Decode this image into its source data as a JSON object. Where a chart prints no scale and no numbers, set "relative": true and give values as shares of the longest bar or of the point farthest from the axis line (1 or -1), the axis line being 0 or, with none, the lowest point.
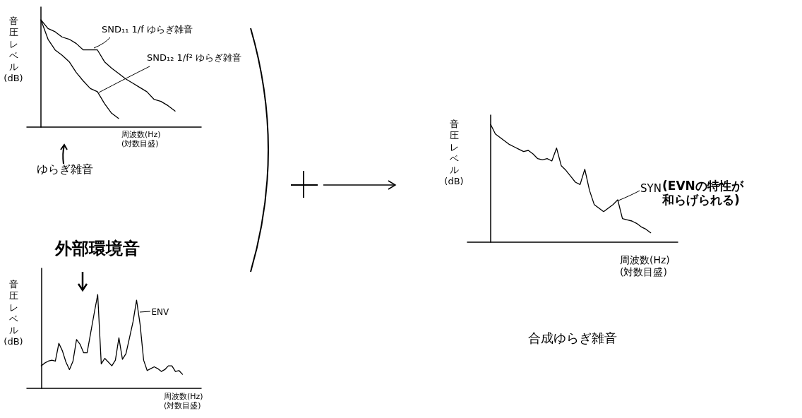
{
  "chart_data": [
    {
      "type": "line",
      "title": "ゆらぎ雑音",
      "xlabel": "周波数(Hz) (対数目盛)",
      "ylabel": "音圧レベル (dB)",
      "relative": true,
      "marker": "none",
      "line_style": "solid",
      "categories": [
        null,
        null,
        null,
        null,
        null,
        null,
        null,
        null,
        null,
        null,
        null,
        null,
        null,
        null,
        null,
        null,
        null,
        null,
        null,
        null
      ],
      "series": [
        {
          "name": "SND₁₁ 1/f ゆらぎ雑音",
          "color": "#000000",
          "values": [
            1,
            0.92,
            0.89,
            0.84,
            0.82,
            0.78,
            0.72,
            0.72,
            0.72,
            0.61,
            0.55,
            0.5,
            0.45,
            0.41,
            0.37,
            0.33,
            0.26,
            0.24,
            0.2,
            0.15
          ]
        },
        {
          "name": "SND₁₂ 1/f² ゆらぎ雑音",
          "color": "#000000",
          "values": [
            1,
            0.82,
            0.72,
            0.67,
            0.61,
            0.51,
            0.43,
            0.36,
            0.33,
            0.22,
            0.13,
            0.08,
            null,
            null,
            null,
            null,
            null,
            null,
            null,
            null
          ]
        }
      ]
    },
    {
      "type": "line",
      "title": "外部環境音",
      "xlabel": "周波数(Hz) (対数目盛)",
      "ylabel": "音圧レベル (dB)",
      "relative": true,
      "marker": "none",
      "line_style": "solid",
      "categories": [
        null,
        null,
        null,
        null,
        null,
        null,
        null,
        null,
        null,
        null,
        null,
        null,
        null,
        null,
        null,
        null,
        null,
        null,
        null,
        null,
        null,
        null,
        null,
        null,
        null,
        null,
        null,
        null,
        null,
        null,
        null,
        null,
        null,
        null,
        null,
        null,
        null,
        null,
        null,
        null,
        null
      ],
      "series": [
        {
          "name": "ENV",
          "color": "#000000",
          "values": [
            0.24,
            0.27,
            0.29,
            0.3,
            0.29,
            0.48,
            0.4,
            0.28,
            0.2,
            0.29,
            0.52,
            0.47,
            0.38,
            0.38,
            0.59,
            0.8,
            1,
            0.26,
            0.32,
            0.28,
            0.24,
            0.3,
            0.54,
            0.31,
            0.37,
            0.54,
            0.71,
            0.94,
            0.68,
            0.3,
            0.19,
            0.21,
            0.23,
            0.21,
            0.18,
            0.2,
            0.24,
            0.24,
            0.18,
            0.19,
            0.15
          ]
        }
      ]
    },
    {
      "type": "line",
      "title": "合成ゆらぎ雑音",
      "xlabel": "周波数(Hz) (対数目盛)",
      "ylabel": "音圧レベル (dB)",
      "relative": true,
      "marker": "none",
      "line_style": "solid",
      "annotations": [
        "(EVNの特性が和らげられる)"
      ],
      "categories": [
        null,
        null,
        null,
        null,
        null,
        null,
        null,
        null,
        null,
        null,
        null,
        null,
        null,
        null,
        null,
        null,
        null,
        null,
        null,
        null,
        null,
        null,
        null,
        null,
        null,
        null,
        null,
        null,
        null,
        null,
        null,
        null,
        null,
        null,
        null
      ],
      "series": [
        {
          "name": "SYN",
          "color": "#000000",
          "values": [
            1,
            0.92,
            0.89,
            0.86,
            0.83,
            0.81,
            0.79,
            0.77,
            0.78,
            0.75,
            0.71,
            0.7,
            0.71,
            0.69,
            0.8,
            0.65,
            0.61,
            0.56,
            0.51,
            0.49,
            0.62,
            0.44,
            0.32,
            0.29,
            0.26,
            0.29,
            0.32,
            0.36,
            0.2,
            0.19,
            0.18,
            0.16,
            0.13,
            0.11,
            0.08
          ]
        }
      ]
    }
  ]
}
